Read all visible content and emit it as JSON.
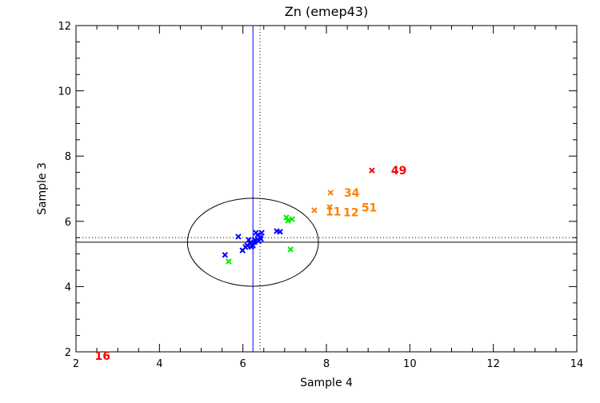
{
  "chart_data": {
    "type": "scatter",
    "title": "Zn (emep43)",
    "xlabel": "Sample 4",
    "ylabel": "Sample 3",
    "xlim": [
      2,
      14
    ],
    "ylim": [
      2,
      12
    ],
    "xticks": [
      "2",
      "4",
      "6",
      "8",
      "10",
      "12",
      "14"
    ],
    "yticks": [
      "2",
      "4",
      "6",
      "8",
      "10",
      "12"
    ],
    "series": [
      {
        "name": "blue",
        "color": "#0000ff",
        "points": [
          [
            5.57,
            4.97
          ],
          [
            5.89,
            5.53
          ],
          [
            5.99,
            5.11
          ],
          [
            6.1,
            5.26
          ],
          [
            6.18,
            5.33
          ],
          [
            6.24,
            5.26
          ],
          [
            6.27,
            5.36
          ],
          [
            6.31,
            5.65
          ],
          [
            6.35,
            5.58
          ],
          [
            6.41,
            5.51
          ],
          [
            6.45,
            5.65
          ],
          [
            6.43,
            5.46
          ],
          [
            6.81,
            5.7
          ],
          [
            6.89,
            5.68
          ],
          [
            6.14,
            5.43
          ],
          [
            6.29,
            5.43
          ],
          [
            6.06,
            5.21
          ],
          [
            6.2,
            5.22
          ],
          [
            6.38,
            5.4
          ]
        ]
      },
      {
        "name": "green",
        "color": "#00ee00",
        "points": [
          [
            5.66,
            4.77
          ],
          [
            7.04,
            6.12
          ],
          [
            7.08,
            6.02
          ],
          [
            7.18,
            6.07
          ],
          [
            7.14,
            5.14
          ]
        ]
      },
      {
        "name": "orange",
        "color": "#ff7f00",
        "points": [
          [
            7.71,
            6.34
          ],
          [
            8.08,
            6.44
          ],
          [
            8.1,
            6.88
          ]
        ]
      },
      {
        "name": "red",
        "color": "#ff0000",
        "points": [
          [
            9.09,
            7.56
          ]
        ]
      }
    ],
    "annotations": [
      {
        "text": "49",
        "x": 9.55,
        "y": 7.56,
        "color": "#ff0000"
      },
      {
        "text": "34",
        "x": 8.42,
        "y": 6.88,
        "color": "#ff7f00"
      },
      {
        "text": "11",
        "x": 7.98,
        "y": 6.3,
        "color": "#ff7f00"
      },
      {
        "text": "12",
        "x": 8.25,
        "y": 6.28,
        "color": "#ff7f00"
      },
      {
        "text": "51",
        "x": 8.38,
        "y": 6.42,
        "color": "#ff7f00"
      },
      {
        "text": "16",
        "x": 2.45,
        "y": 1.88,
        "color": "#ff0000"
      }
    ],
    "reference_lines": {
      "vertical_solid": 6.24,
      "vertical_dotted": 6.41,
      "horizontal_solid": 5.36,
      "horizontal_dotted": 5.5
    },
    "ellipse": {
      "cx": 6.24,
      "cy": 5.36,
      "rx": 1.57,
      "ry": 1.35
    }
  }
}
